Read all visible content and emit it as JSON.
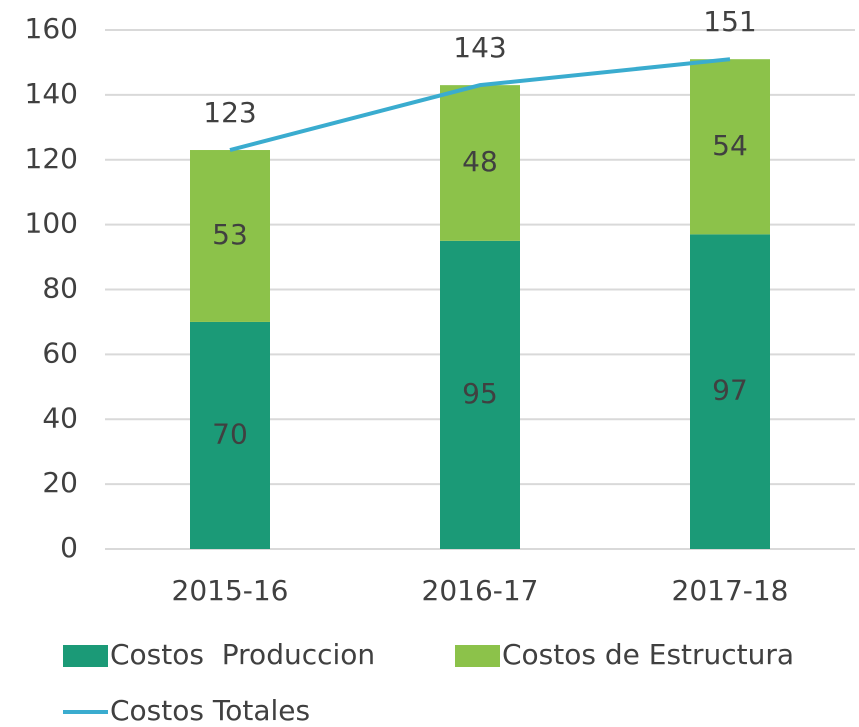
{
  "chart_data": {
    "type": "bar",
    "stacked": true,
    "categories": [
      "2015-16",
      "2016-17",
      "2017-18"
    ],
    "series": [
      {
        "name": "Costos  Produccion",
        "color": "#1b9a77",
        "values": [
          70,
          95,
          97
        ]
      },
      {
        "name": "Costos de Estructura",
        "color": "#8cc24a",
        "values": [
          53,
          48,
          54
        ]
      },
      {
        "name": "Costos Totales",
        "type": "line",
        "color": "#3aaccf",
        "values": [
          123,
          143,
          151
        ]
      }
    ],
    "ylim": [
      0,
      160
    ],
    "yticks": [
      0,
      20,
      40,
      60,
      80,
      100,
      120,
      140,
      160
    ],
    "grid": true,
    "legend": "bottom"
  }
}
